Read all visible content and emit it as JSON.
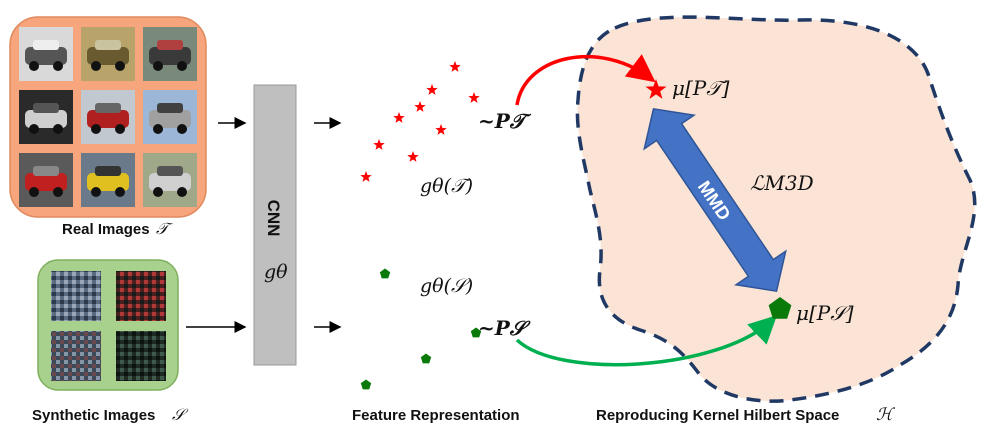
{
  "colors": {
    "real_panel": "#f7a57c",
    "real_panel_border": "#e08a5e",
    "synthetic_panel": "#a9d18e",
    "synthetic_panel_border": "#7fb05e",
    "target": "#ff0000",
    "source": "#0a7a0a",
    "rkhs_fill": "#fbe4d5",
    "rkhs_border": "#1f3864",
    "mmd_arrow": "#4472c4",
    "cnn_box": "#bfbfbf"
  },
  "labels": {
    "real_images": "Real Images",
    "real_images_symbol": "𝒯",
    "synthetic_images": "Synthetic Images",
    "synthetic_images_symbol": "𝒮",
    "cnn": "CNN",
    "cnn_param": "gθ",
    "feature_representation": "Feature Representation",
    "g_target": "gθ(𝒯)",
    "g_source": "gθ(𝒮)",
    "p_target": "~P𝒯",
    "p_source": "~P𝒮",
    "mu_target": "μ[P𝒯]",
    "mu_source": "μ[P𝒮]",
    "mmd": "MMD",
    "loss": "ℒM3D",
    "rkhs": "Reproducing Kernel Hilbert Space",
    "rkhs_symbol": "ℋ"
  },
  "icons": {
    "target_marker": "star-icon",
    "source_marker": "pentagon-icon"
  },
  "real_image_tiles": [
    "white car",
    "gold car",
    "car with red emblem",
    "white sedan",
    "red car",
    "silver sedan",
    "red sports car",
    "yellow convertible",
    "silver convertible"
  ],
  "synthetic_image_tiles": [
    "blue-gray noise",
    "red-black noise",
    "blue-gray noise",
    "dark green noise"
  ]
}
